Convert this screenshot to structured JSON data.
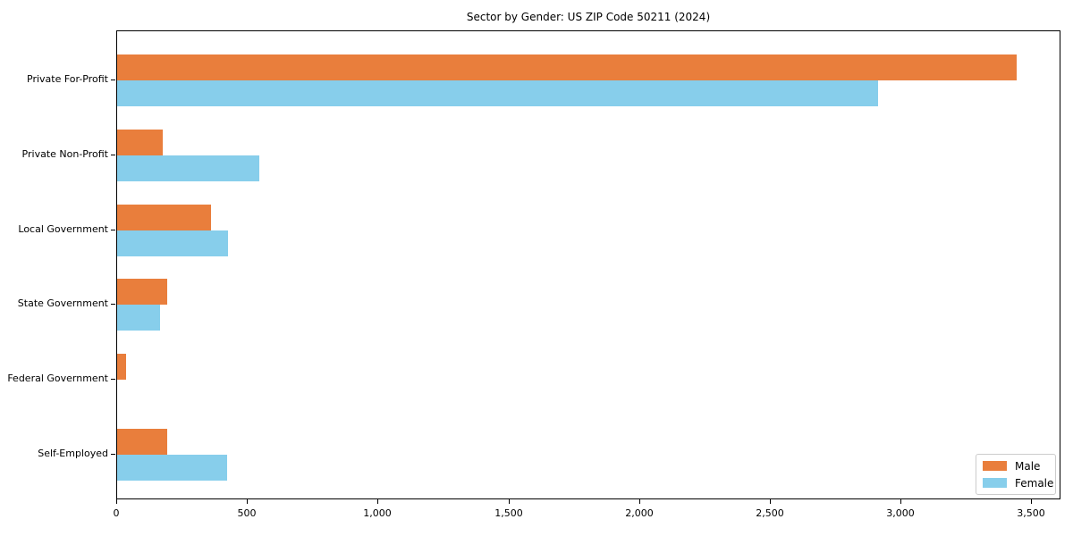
{
  "chart_data": {
    "type": "bar",
    "orientation": "horizontal",
    "title": "Sector by Gender: US ZIP Code 50211 (2024)",
    "categories": [
      "Private For-Profit",
      "Private Non-Profit",
      "Local Government",
      "State Government",
      "Federal Government",
      "Self-Employed"
    ],
    "series": [
      {
        "name": "Male",
        "color": "#e97e3c",
        "values": [
          3440,
          175,
          360,
          190,
          33,
          190
        ]
      },
      {
        "name": "Female",
        "color": "#87ceeb",
        "values": [
          2910,
          545,
          425,
          165,
          0,
          420
        ]
      }
    ],
    "xlabel": "",
    "ylabel": "",
    "xlim": [
      0,
      3612
    ],
    "xticks": [
      0,
      500,
      1000,
      1500,
      2000,
      2500,
      3000,
      3500
    ],
    "xtick_labels": [
      "0",
      "500",
      "1,000",
      "1,500",
      "2,000",
      "2,500",
      "3,000",
      "3,500"
    ],
    "grid": false,
    "legend": {
      "position": "lower right",
      "entries": [
        "Male",
        "Female"
      ]
    }
  }
}
